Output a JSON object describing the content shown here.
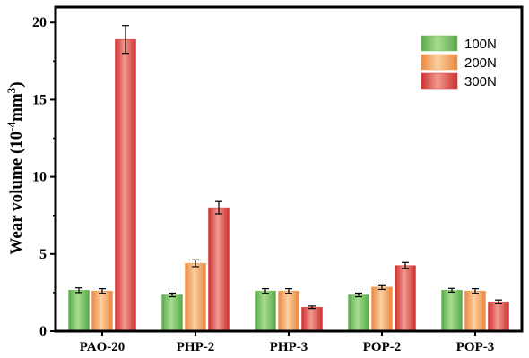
{
  "chart_data": {
    "type": "bar",
    "categories": [
      "PAO-20",
      "PHP-2",
      "PHP-3",
      "POP-2",
      "POP-3"
    ],
    "series": [
      {
        "name": "100N",
        "values": [
          2.65,
          2.35,
          2.6,
          2.35,
          2.65
        ],
        "errors": [
          0.15,
          0.12,
          0.15,
          0.12,
          0.12
        ],
        "color": "#7cc36a"
      },
      {
        "name": "200N",
        "values": [
          2.6,
          4.4,
          2.6,
          2.85,
          2.6
        ],
        "errors": [
          0.15,
          0.22,
          0.15,
          0.15,
          0.15
        ],
        "color": "#f3a563"
      },
      {
        "name": "300N",
        "values": [
          18.9,
          8.0,
          1.55,
          4.25,
          1.9
        ],
        "errors": [
          0.9,
          0.4,
          0.08,
          0.2,
          0.12
        ],
        "color": "#e0494a"
      }
    ],
    "ylabel_main": "Wear volume (10",
    "ylabel_exp": "-4",
    "ylabel_unit": "mm",
    "ylabel_unit_exp": "3",
    "ylabel_close": ")",
    "ylim": [
      0,
      21
    ],
    "yticks": [
      0,
      5,
      10,
      15,
      20
    ],
    "grid": false,
    "legend_position": "top-right"
  }
}
